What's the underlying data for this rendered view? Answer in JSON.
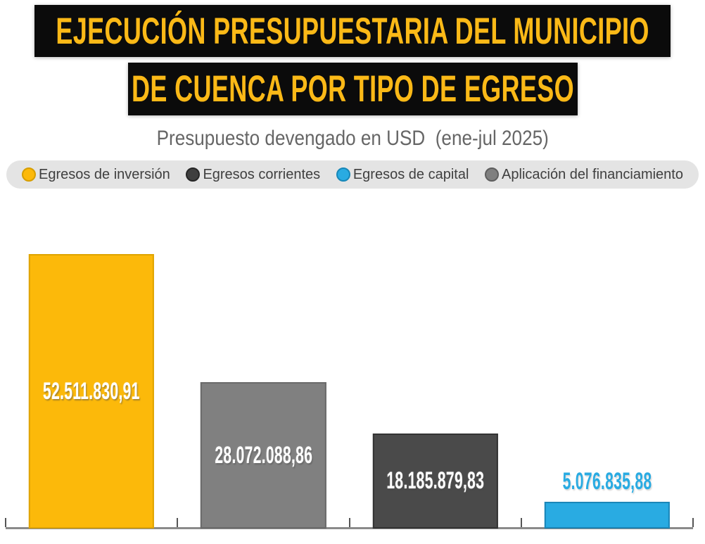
{
  "header": {
    "title_line1": "EJECUCIÓN PRESUPUESTARIA DEL MUNICIPIO",
    "title_line2": "DE CUENCA POR TIPO DE EGRESO",
    "subtitle": "Presupuesto devengado en USD  (ene-jul 2025)",
    "title_color": "#FBB917",
    "title_bg": "#0B0B0B",
    "subtitle_color": "#666666"
  },
  "legend": {
    "background": "#E4E4E4",
    "items": [
      {
        "label": "Egresos de inversión",
        "color": "#FCB90A",
        "stroke": "#D69E00"
      },
      {
        "label": "Egresos corrientes",
        "color": "#3F3F3F",
        "stroke": "#262626"
      },
      {
        "label": "Egresos de capital",
        "color": "#29ABE2",
        "stroke": "#1787B8"
      },
      {
        "label": "Aplicación del financiamiento",
        "color": "#7F7F7F",
        "stroke": "#5E5E5E"
      }
    ]
  },
  "chart_data": {
    "type": "bar",
    "title": "EJECUCIÓN PRESUPUESTARIA DEL MUNICIPIO DE CUENCA POR TIPO DE EGRESO",
    "subtitle": "Presupuesto devengado en USD (ene-jul 2025)",
    "categories": [
      "Egresos de inversión",
      "Aplicación del financiamiento",
      "Egresos corrientes",
      "Egresos de capital"
    ],
    "values": [
      52511830.91,
      28072088.86,
      18185879.83,
      5076835.88
    ],
    "value_labels": [
      "52.511.830,91",
      "28.072.088,86",
      "18.185.879,83",
      "5.076.835,88"
    ],
    "bar_colors": [
      "#FCB90A",
      "#808080",
      "#4A4A4A",
      "#29ABE2"
    ],
    "bar_strokes": [
      "#DFA400",
      "#6A6A6A",
      "#333333",
      "#1B86B8"
    ],
    "xlabel": "",
    "ylabel": "",
    "ylim": [
      0,
      52511830.91
    ],
    "grid": false,
    "value_axis_visible": false,
    "sort": "descending",
    "legend_position": "top",
    "x_axis_tick_count": 5
  }
}
